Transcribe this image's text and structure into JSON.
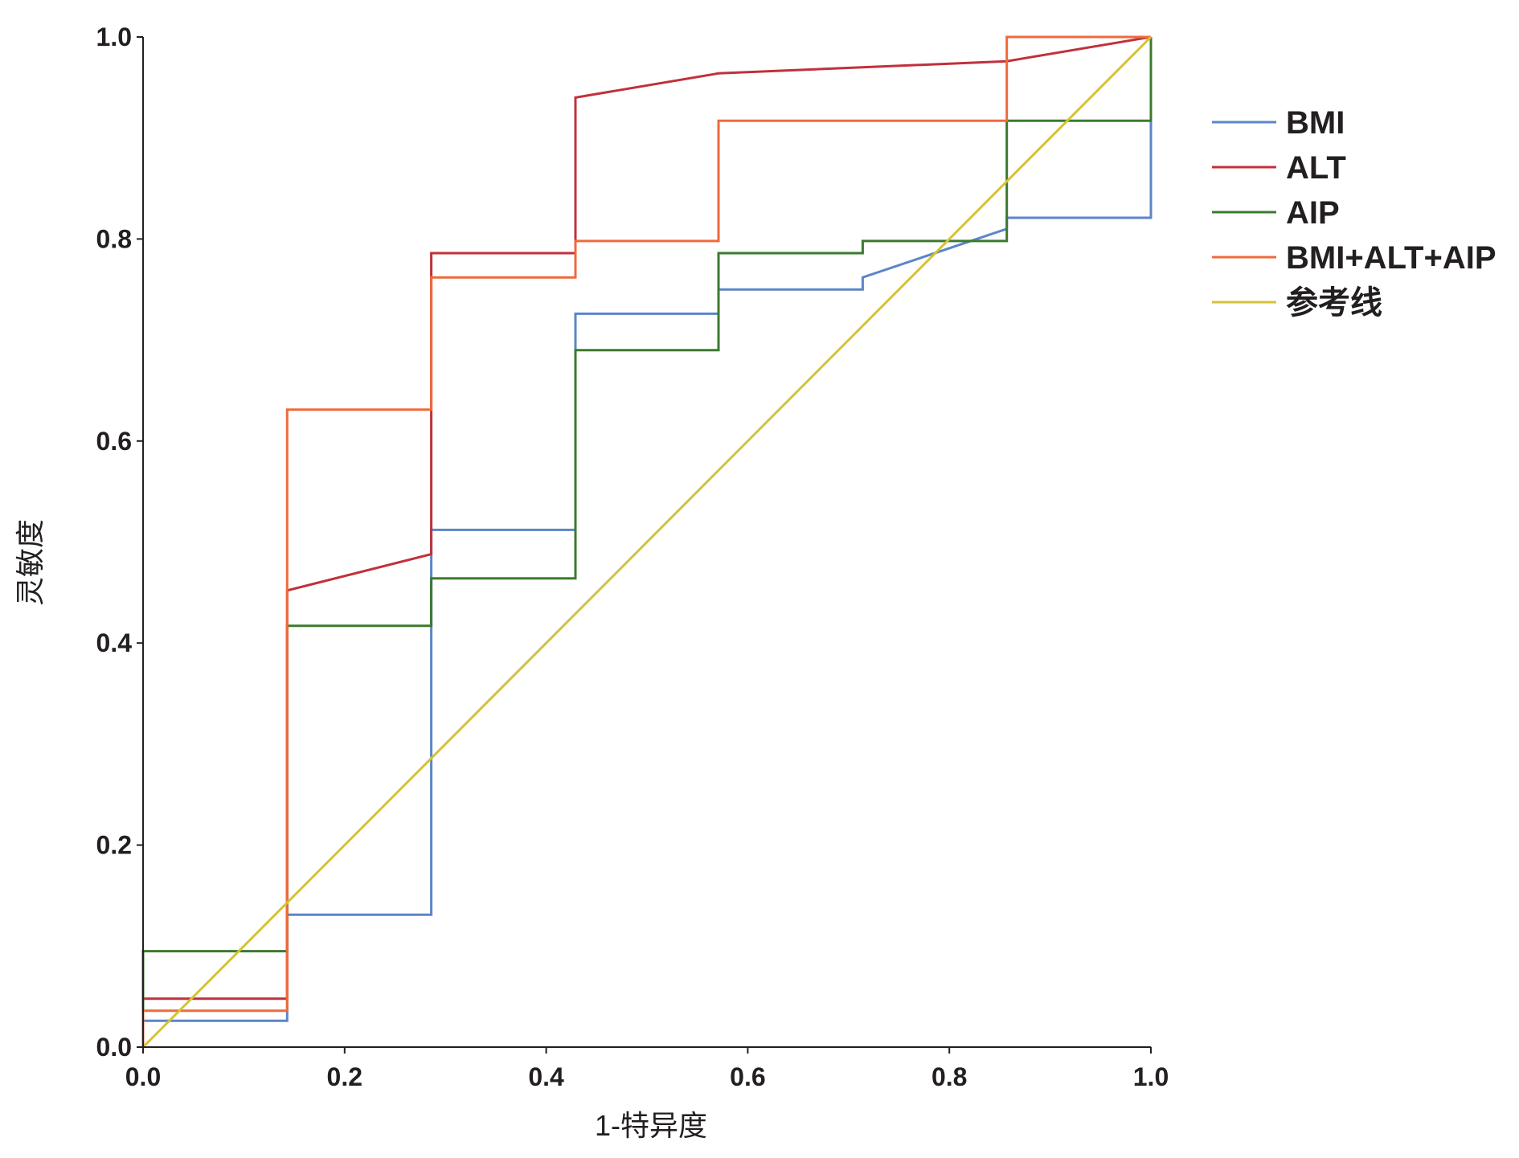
{
  "chart_data": {
    "type": "line",
    "title": "",
    "xlabel": "1-特异度",
    "ylabel": "灵敏度",
    "xlim": [
      0,
      1
    ],
    "ylim": [
      0,
      1
    ],
    "grid": false,
    "legend_position": "right",
    "x_ticks": [
      0.0,
      0.2,
      0.4,
      0.6,
      0.8,
      1.0
    ],
    "y_ticks": [
      0.0,
      0.2,
      0.4,
      0.6,
      0.8,
      1.0
    ],
    "x_tick_labels": [
      "0.0",
      "0.2",
      "0.4",
      "0.6",
      "0.8",
      "1.0"
    ],
    "y_tick_labels": [
      "0.0",
      "0.2",
      "0.4",
      "0.6",
      "0.8",
      "1.0"
    ],
    "series": [
      {
        "name": "BMI",
        "color": "#5b86c8",
        "points": [
          [
            0,
            0
          ],
          [
            0,
            0.026
          ],
          [
            0.143,
            0.026
          ],
          [
            0.143,
            0.131
          ],
          [
            0.286,
            0.131
          ],
          [
            0.286,
            0.512
          ],
          [
            0.429,
            0.512
          ],
          [
            0.429,
            0.726
          ],
          [
            0.571,
            0.726
          ],
          [
            0.571,
            0.75
          ],
          [
            0.714,
            0.75
          ],
          [
            0.714,
            0.762
          ],
          [
            0.857,
            0.81
          ],
          [
            0.857,
            0.821
          ],
          [
            1.0,
            0.821
          ],
          [
            1.0,
            1.0
          ]
        ]
      },
      {
        "name": "ALT",
        "color": "#c0313b",
        "points": [
          [
            0,
            0
          ],
          [
            0,
            0.048
          ],
          [
            0.143,
            0.048
          ],
          [
            0.143,
            0.452
          ],
          [
            0.286,
            0.488
          ],
          [
            0.286,
            0.786
          ],
          [
            0.429,
            0.786
          ],
          [
            0.429,
            0.94
          ],
          [
            0.571,
            0.964
          ],
          [
            0.857,
            0.976
          ],
          [
            1.0,
            1.0
          ]
        ]
      },
      {
        "name": "AIP",
        "color": "#3b7a2e",
        "points": [
          [
            0,
            0
          ],
          [
            0,
            0.095
          ],
          [
            0.143,
            0.095
          ],
          [
            0.143,
            0.417
          ],
          [
            0.286,
            0.417
          ],
          [
            0.286,
            0.464
          ],
          [
            0.429,
            0.464
          ],
          [
            0.429,
            0.69
          ],
          [
            0.571,
            0.69
          ],
          [
            0.571,
            0.786
          ],
          [
            0.714,
            0.786
          ],
          [
            0.714,
            0.798
          ],
          [
            0.857,
            0.798
          ],
          [
            0.857,
            0.917
          ],
          [
            1.0,
            0.917
          ],
          [
            1.0,
            1.0
          ]
        ]
      },
      {
        "name": "BMI+ALT+AIP",
        "color": "#ef6a3a",
        "points": [
          [
            0,
            0
          ],
          [
            0,
            0.036
          ],
          [
            0.143,
            0.036
          ],
          [
            0.143,
            0.631
          ],
          [
            0.286,
            0.631
          ],
          [
            0.286,
            0.762
          ],
          [
            0.429,
            0.762
          ],
          [
            0.429,
            0.798
          ],
          [
            0.571,
            0.798
          ],
          [
            0.571,
            0.917
          ],
          [
            0.857,
            0.917
          ],
          [
            0.857,
            1.0
          ],
          [
            1.0,
            1.0
          ]
        ]
      },
      {
        "name": "参考线",
        "color": "#d4c23a",
        "points": [
          [
            0,
            0
          ],
          [
            1.0,
            1.0
          ]
        ]
      }
    ]
  }
}
